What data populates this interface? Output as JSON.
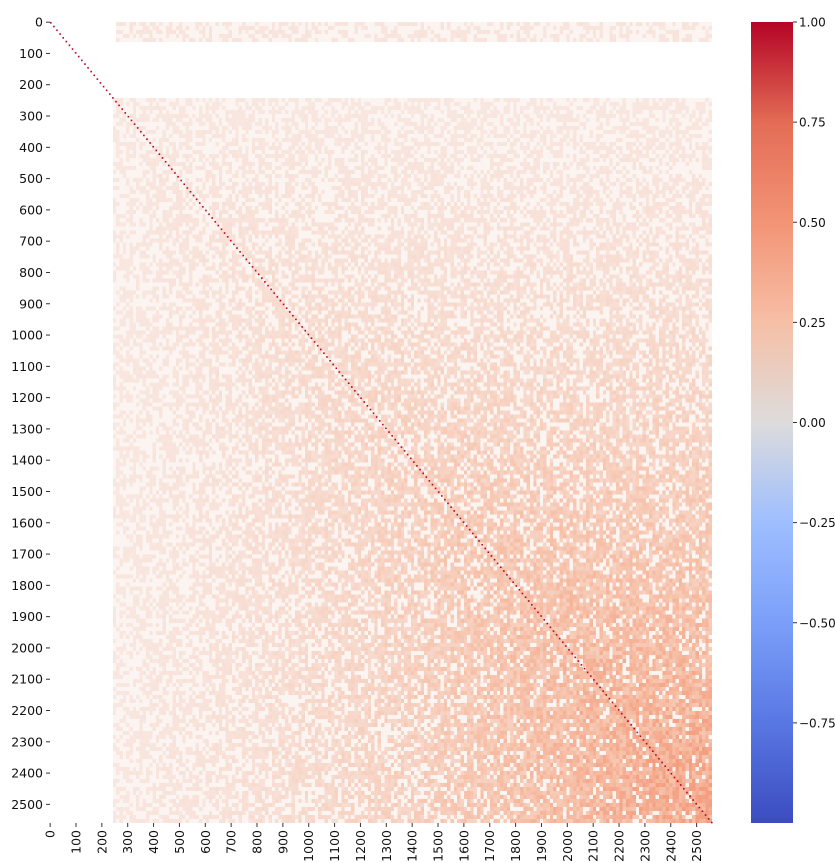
{
  "chart_data": {
    "type": "heatmap",
    "title": "",
    "xlabel": "",
    "ylabel": "",
    "matrix_size": 2560,
    "x_range": [
      0,
      2560
    ],
    "y_range": [
      0,
      2560
    ],
    "x_ticks": [
      "0",
      "100",
      "200",
      "300",
      "400",
      "500",
      "600",
      "700",
      "800",
      "900",
      "1000",
      "1100",
      "1200",
      "1300",
      "1400",
      "1500",
      "1600",
      "1700",
      "1800",
      "1900",
      "2000",
      "2100",
      "2200",
      "2300",
      "2400",
      "2500"
    ],
    "y_ticks": [
      "0",
      "100",
      "200",
      "300",
      "400",
      "500",
      "600",
      "700",
      "800",
      "900",
      "1000",
      "1100",
      "1200",
      "1300",
      "1400",
      "1500",
      "1600",
      "1700",
      "1800",
      "1900",
      "2000",
      "2100",
      "2200",
      "2300",
      "2400",
      "2500"
    ],
    "diagonal_value": 1.0,
    "colorbar": {
      "colormap": "coolwarm",
      "vmin": -1.0,
      "vmax": 1.0,
      "ticks": [
        "1.00",
        "0.75",
        "0.50",
        "0.25",
        "0.00",
        "−0.25",
        "−0.50",
        "−0.75"
      ],
      "tick_values": [
        1.0,
        0.75,
        0.5,
        0.25,
        0.0,
        -0.25,
        -0.5,
        -0.75
      ],
      "colors": {
        "min": "#3b4cc0",
        "mid": "#dddcdc",
        "max": "#b40426"
      }
    },
    "grid": false,
    "legend": "right"
  }
}
